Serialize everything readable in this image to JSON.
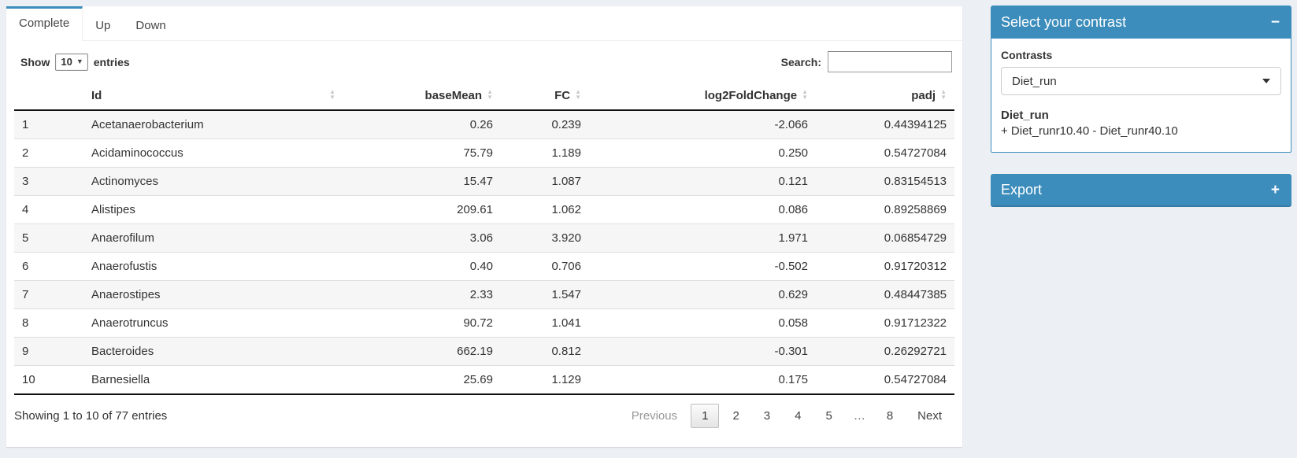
{
  "colors": {
    "accent": "#3c8dbc",
    "page_bg": "#ecf0f5",
    "stripe": "#f6f6f6"
  },
  "tabs": [
    {
      "label": "Complete",
      "active": true
    },
    {
      "label": "Up",
      "active": false
    },
    {
      "label": "Down",
      "active": false
    }
  ],
  "length_control": {
    "prefix": "Show",
    "value": "10",
    "suffix": "entries"
  },
  "search": {
    "label": "Search:",
    "value": ""
  },
  "table": {
    "columns": [
      {
        "label": "",
        "align": "left",
        "sortable": false
      },
      {
        "label": "Id",
        "align": "left",
        "sortable": true
      },
      {
        "label": "baseMean",
        "align": "right",
        "sortable": true
      },
      {
        "label": "FC",
        "align": "right",
        "sortable": true
      },
      {
        "label": "log2FoldChange",
        "align": "right",
        "sortable": true
      },
      {
        "label": "padj",
        "align": "right",
        "sortable": true
      }
    ],
    "rows": [
      [
        "1",
        "Acetanaerobacterium",
        "0.26",
        "0.239",
        "-2.066",
        "0.44394125"
      ],
      [
        "2",
        "Acidaminococcus",
        "75.79",
        "1.189",
        "0.250",
        "0.54727084"
      ],
      [
        "3",
        "Actinomyces",
        "15.47",
        "1.087",
        "0.121",
        "0.83154513"
      ],
      [
        "4",
        "Alistipes",
        "209.61",
        "1.062",
        "0.086",
        "0.89258869"
      ],
      [
        "5",
        "Anaerofilum",
        "3.06",
        "3.920",
        "1.971",
        "0.06854729"
      ],
      [
        "6",
        "Anaerofustis",
        "0.40",
        "0.706",
        "-0.502",
        "0.91720312"
      ],
      [
        "7",
        "Anaerostipes",
        "2.33",
        "1.547",
        "0.629",
        "0.48447385"
      ],
      [
        "8",
        "Anaerotruncus",
        "90.72",
        "1.041",
        "0.058",
        "0.91712322"
      ],
      [
        "9",
        "Bacteroides",
        "662.19",
        "0.812",
        "-0.301",
        "0.26292721"
      ],
      [
        "10",
        "Barnesiella",
        "25.69",
        "1.129",
        "0.175",
        "0.54727084"
      ]
    ]
  },
  "footer": {
    "info": "Showing 1 to 10 of 77 entries",
    "pagination": {
      "previous": "Previous",
      "pages": [
        "1",
        "2",
        "3",
        "4",
        "5",
        "…",
        "8"
      ],
      "current": "1",
      "next": "Next"
    }
  },
  "contrast_box": {
    "title": "Select your contrast",
    "collapse_icon": "−",
    "label": "Contrasts",
    "selected": "Diet_run",
    "detail_title": "Diet_run",
    "detail_formula": "+ Diet_runr10.40 - Diet_runr40.10"
  },
  "export_box": {
    "title": "Export",
    "collapse_icon": "+"
  }
}
